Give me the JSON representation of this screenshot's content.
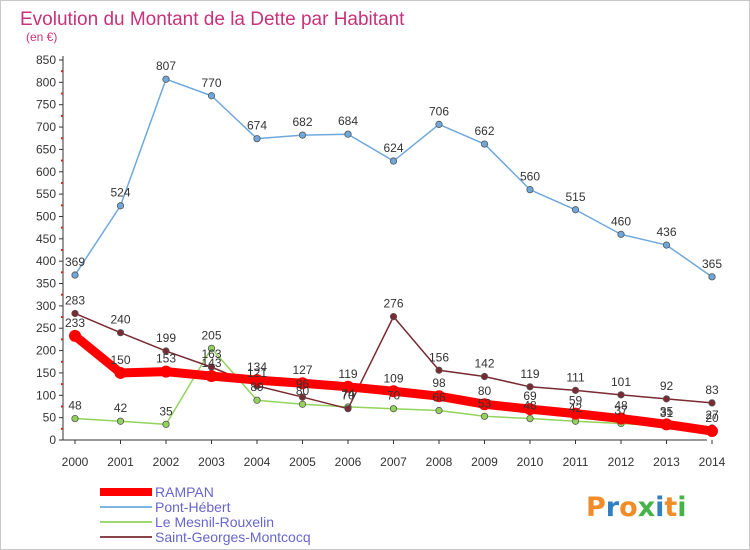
{
  "chart_data": {
    "type": "line",
    "title": "Evolution du Montant de la Dette par Habitant",
    "subtitle": "(en €)",
    "x": [
      "2000",
      "2001",
      "2002",
      "2003",
      "2004",
      "2005",
      "2006",
      "2007",
      "2008",
      "2009",
      "2010",
      "2011",
      "2012",
      "2013",
      "2014"
    ],
    "ylim": [
      0,
      850
    ],
    "yticks": [
      0,
      50,
      100,
      150,
      200,
      250,
      300,
      350,
      400,
      450,
      500,
      550,
      600,
      650,
      700,
      750,
      800,
      850
    ],
    "grid": false,
    "legend_position": "bottom-left",
    "series": [
      {
        "name": "RAMPAN",
        "color": "#ff0000",
        "values": [
          233,
          150,
          153,
          143,
          134,
          127,
          119,
          109,
          98,
          80,
          69,
          59,
          48,
          35,
          20
        ]
      },
      {
        "name": "Pont-Hébert",
        "color": "#6fa8dc",
        "values": [
          369,
          524,
          807,
          770,
          674,
          682,
          684,
          624,
          706,
          662,
          560,
          515,
          460,
          436,
          365
        ]
      },
      {
        "name": "Le Mesnil-Rouxelin",
        "color": "#93d35b",
        "values": [
          48,
          42,
          35,
          205,
          89,
          80,
          74,
          70,
          66,
          53,
          48,
          42,
          37,
          31,
          27
        ]
      },
      {
        "name": "Saint-Georges-Montcocq",
        "color": "#7a2a32",
        "values": [
          283,
          240,
          199,
          163,
          121,
          96,
          70,
          276,
          156,
          142,
          119,
          111,
          101,
          92,
          83
        ]
      }
    ]
  },
  "logo": {
    "text": "Proxiti",
    "colors": [
      "#f28c28",
      "#2f7fc1",
      "#f28c28",
      "#45b24a",
      "#2f7fc1",
      "#f28c28",
      "#45b24a"
    ]
  }
}
